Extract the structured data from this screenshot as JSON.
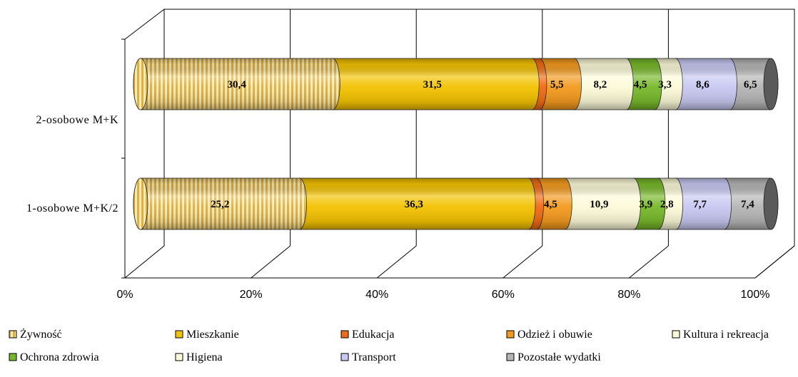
{
  "chart_data": {
    "type": "bar",
    "orientation": "horizontal",
    "stacked": "percent",
    "style": "3d-cylinder",
    "categories": [
      "2-osobowe M+K",
      "1-osobowe M+K/2"
    ],
    "xlim": [
      0,
      100
    ],
    "x_ticks": [
      "0%",
      "20%",
      "40%",
      "60%",
      "80%",
      "100%"
    ],
    "grid": true,
    "legend_position": "bottom",
    "series": [
      {
        "name": "Żywność",
        "values": [
          30.4,
          25.2
        ],
        "labels": [
          "30,4",
          "25,2"
        ],
        "color": "#F2EDB8",
        "stripe": "#D9B04A",
        "pattern": "striped"
      },
      {
        "name": "Mieszkanie",
        "values": [
          31.5,
          36.3
        ],
        "labels": [
          "31,5",
          "36,3"
        ],
        "color": "#F3C200"
      },
      {
        "name": "Edukacja",
        "values": [
          1.2,
          1.3
        ],
        "labels": [
          "",
          ""
        ],
        "color": "#F06A14"
      },
      {
        "name": "Odzież i obuwie",
        "values": [
          5.5,
          4.5
        ],
        "labels": [
          "5,5",
          "4,5"
        ],
        "color": "#F39A1E"
      },
      {
        "name": "Kultura i rekreacja",
        "values": [
          8.2,
          10.9
        ],
        "labels": [
          "8,2",
          "10,9"
        ],
        "color": "#FCFAD8"
      },
      {
        "name": "Ochrona zdrowia",
        "values": [
          4.5,
          3.9
        ],
        "labels": [
          "4,5",
          "3,9"
        ],
        "color": "#77B82A"
      },
      {
        "name": "Higiena",
        "values": [
          3.3,
          2.8
        ],
        "labels": [
          "3,3",
          "2,8"
        ],
        "color": "#FCFAD8"
      },
      {
        "name": "Transport",
        "values": [
          8.6,
          7.7
        ],
        "labels": [
          "8,6",
          "7,7"
        ],
        "color": "#C8C8F2"
      },
      {
        "name": "Pozostałe wydatki",
        "values": [
          6.5,
          7.4
        ],
        "labels": [
          "6,5",
          "7,4"
        ],
        "color": "#B5B5B5"
      }
    ]
  }
}
